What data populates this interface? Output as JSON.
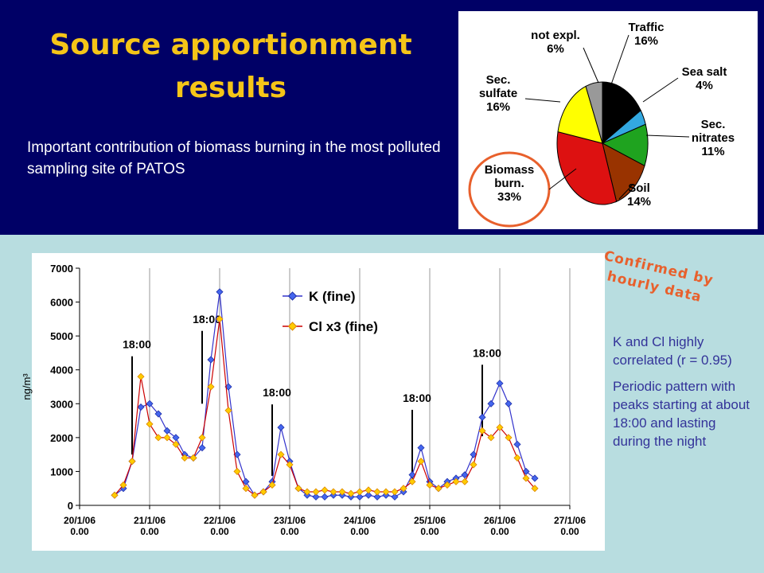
{
  "title": "Source apportionment results",
  "intro": "Important contribution of biomass burning in the most polluted sampling site of PATOS",
  "annotation": "Confirmed by hourly data",
  "notes": [
    "K and Cl highly correlated (r = 0.95)",
    "Periodic pattern with peaks starting at about 18:00 and lasting during the night"
  ],
  "chart_data": [
    {
      "type": "pie",
      "categories": [
        "Traffic",
        "Sea salt",
        "Sec. nitrates",
        "Soil",
        "Biomass burn.",
        "Sec. sulfate",
        "not expl."
      ],
      "values": [
        16,
        4,
        11,
        14,
        33,
        16,
        6
      ],
      "value_labels": [
        "16%",
        "4%",
        "11%",
        "14%",
        "33%",
        "16%",
        "6%"
      ],
      "colors": [
        "#000000",
        "#33a8e0",
        "#1fa31f",
        "#993300",
        "#dd1111",
        "#ffff00",
        "#999999"
      ]
    },
    {
      "type": "line",
      "ylabel": "ng/m³",
      "x": [
        0.5,
        0.625,
        0.75,
        0.875,
        1.0,
        1.125,
        1.25,
        1.375,
        1.5,
        1.625,
        1.75,
        1.875,
        2.0,
        2.125,
        2.25,
        2.375,
        2.5,
        2.625,
        2.75,
        2.875,
        3.0,
        3.125,
        3.25,
        3.375,
        3.5,
        3.625,
        3.75,
        3.875,
        4.0,
        4.125,
        4.25,
        4.375,
        4.5,
        4.625,
        4.75,
        4.875,
        5.0,
        5.125,
        5.25,
        5.375,
        5.5,
        5.625,
        5.75,
        5.875,
        6.0,
        6.125,
        6.25,
        6.375,
        6.5
      ],
      "series": [
        {
          "name": "K (fine)",
          "color": "#3333cc",
          "values": [
            300,
            500,
            1300,
            2900,
            3000,
            2700,
            2200,
            2000,
            1500,
            1400,
            1700,
            4300,
            6300,
            3500,
            1500,
            700,
            300,
            400,
            700,
            2300,
            1300,
            500,
            300,
            250,
            250,
            300,
            300,
            250,
            250,
            300,
            250,
            300,
            250,
            400,
            900,
            1700,
            700,
            500,
            700,
            800,
            900,
            1500,
            2600,
            3000,
            3600,
            3000,
            1800,
            1000,
            800
          ]
        },
        {
          "name": "Cl x3 (fine)",
          "color": "#cc0000",
          "values": [
            300,
            600,
            1300,
            3800,
            2400,
            2000,
            2000,
            1800,
            1400,
            1400,
            2000,
            3500,
            5500,
            2800,
            1000,
            500,
            300,
            400,
            600,
            1500,
            1200,
            500,
            400,
            400,
            450,
            400,
            400,
            350,
            400,
            450,
            400,
            400,
            400,
            500,
            700,
            1300,
            600,
            500,
            600,
            700,
            700,
            1200,
            2200,
            2000,
            2300,
            2000,
            1400,
            800,
            500
          ]
        }
      ],
      "xlim": [
        0,
        7
      ],
      "xticks": [
        {
          "value": 0,
          "label": "20/1/06 0.00"
        },
        {
          "value": 1,
          "label": "21/1/06 0.00"
        },
        {
          "value": 2,
          "label": "22/1/06 0.00"
        },
        {
          "value": 3,
          "label": "23/1/06 0.00"
        },
        {
          "value": 4,
          "label": "24/1/06 0.00"
        },
        {
          "value": 5,
          "label": "25/1/06 0.00"
        },
        {
          "value": 6,
          "label": "26/1/06 0.00"
        },
        {
          "value": 7,
          "label": "27/1/06 0.00"
        }
      ],
      "ylim": [
        0,
        7000
      ],
      "yticks": [
        0,
        1000,
        2000,
        3000,
        4000,
        5000,
        6000,
        7000
      ],
      "grid": "x",
      "annotations": [
        {
          "label": "18:00",
          "x": 0.75,
          "y": [
            1500,
            4400
          ]
        },
        {
          "label": "18:00",
          "x": 1.75,
          "y": [
            3000,
            5150
          ]
        },
        {
          "label": "18:00",
          "x": 2.75,
          "y": [
            870,
            2980
          ]
        },
        {
          "label": "18:00",
          "x": 4.75,
          "y": [
            700,
            2820
          ]
        },
        {
          "label": "18:00",
          "x": 5.75,
          "y": [
            2040,
            4150
          ]
        }
      ]
    }
  ]
}
